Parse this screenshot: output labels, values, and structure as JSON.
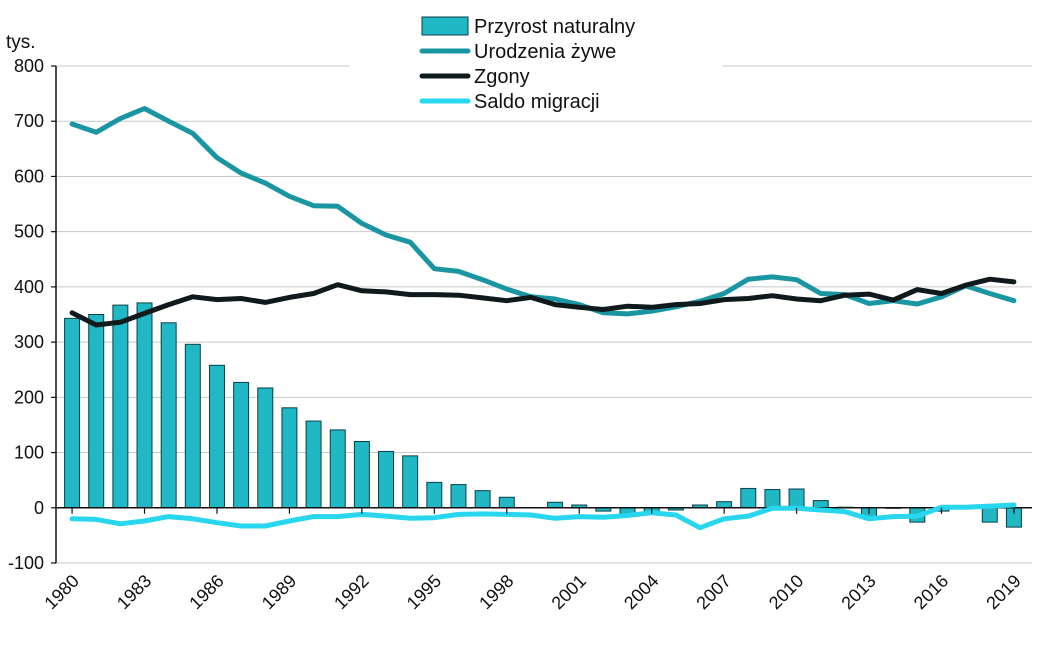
{
  "chart_data": {
    "type": "bar+line",
    "unit_label": "tys.",
    "ylim": [
      -100,
      800
    ],
    "yticks": [
      "800",
      "700",
      "600",
      "500",
      "400",
      "300",
      "200",
      "100",
      "0",
      "-100"
    ],
    "ytick_values": [
      800,
      700,
      600,
      500,
      400,
      300,
      200,
      100,
      0,
      -100
    ],
    "years": [
      1980,
      1981,
      1982,
      1983,
      1984,
      1985,
      1986,
      1987,
      1988,
      1989,
      1990,
      1991,
      1992,
      1993,
      1994,
      1995,
      1996,
      1997,
      1998,
      1999,
      2000,
      2001,
      2002,
      2003,
      2004,
      2005,
      2006,
      2007,
      2008,
      2009,
      2010,
      2011,
      2012,
      2013,
      2014,
      2015,
      2016,
      2017,
      2018,
      2019
    ],
    "xtick_labels": [
      "1980",
      "1983",
      "1986",
      "1989",
      "1992",
      "1995",
      "1998",
      "2001",
      "2004",
      "2007",
      "2010",
      "2013",
      "2016",
      "2019"
    ],
    "xtick_years": [
      1980,
      1983,
      1986,
      1989,
      1992,
      1995,
      1998,
      2001,
      2004,
      2007,
      2010,
      2013,
      2016,
      2019
    ],
    "legend": [
      {
        "label": "Przyrost naturalny",
        "kind": "bar",
        "color": "#1fb8c4"
      },
      {
        "label": "Urodzenia żywe",
        "kind": "line",
        "color": "#1a96a3"
      },
      {
        "label": "Zgony",
        "kind": "line",
        "color": "#0f1a1c"
      },
      {
        "label": "Saldo migracji",
        "kind": "line",
        "color": "#28d7ee"
      }
    ],
    "series": [
      {
        "name": "Przyrost naturalny",
        "type": "bar",
        "color": "#1fb8c4",
        "values": [
          343,
          350,
          367,
          371,
          335,
          296,
          258,
          227,
          217,
          181,
          157,
          141,
          120,
          102,
          94,
          46,
          42,
          31,
          19,
          0,
          10,
          5,
          -6,
          -14,
          -7,
          -4,
          5,
          11,
          35,
          33,
          34,
          13,
          1,
          -18,
          -1,
          -26,
          -6,
          1,
          -26,
          -35
        ]
      },
      {
        "name": "Urodzenia żywe",
        "type": "line",
        "color": "#1a96a3",
        "values": [
          695,
          680,
          705,
          723,
          700,
          678,
          634,
          606,
          588,
          564,
          547,
          546,
          515,
          494,
          481,
          433,
          428,
          413,
          396,
          382,
          378,
          368,
          353,
          351,
          356,
          364,
          374,
          388,
          414,
          418,
          413,
          388,
          386,
          370,
          375,
          369,
          382,
          402,
          388,
          375
        ]
      },
      {
        "name": "Zgony",
        "type": "line",
        "color": "#0f1a1c",
        "values": [
          353,
          331,
          336,
          352,
          368,
          382,
          377,
          379,
          372,
          381,
          388,
          404,
          393,
          391,
          386,
          386,
          385,
          380,
          375,
          381,
          368,
          363,
          359,
          365,
          363,
          368,
          370,
          377,
          379,
          384,
          378,
          375,
          385,
          387,
          376,
          395,
          388,
          403,
          414,
          409
        ]
      },
      {
        "name": "Saldo migracji",
        "type": "line",
        "color": "#28d7ee",
        "values": [
          -20,
          -21,
          -29,
          -24,
          -16,
          -20,
          -27,
          -33,
          -33,
          -24,
          -16,
          -16,
          -12,
          -15,
          -19,
          -18,
          -12,
          -11,
          -12,
          -13,
          -19,
          -16,
          -17,
          -14,
          -9,
          -13,
          -36,
          -20,
          -15,
          -1,
          -1,
          -4,
          -7,
          -20,
          -16,
          -15,
          1,
          1,
          3,
          5
        ]
      }
    ]
  }
}
